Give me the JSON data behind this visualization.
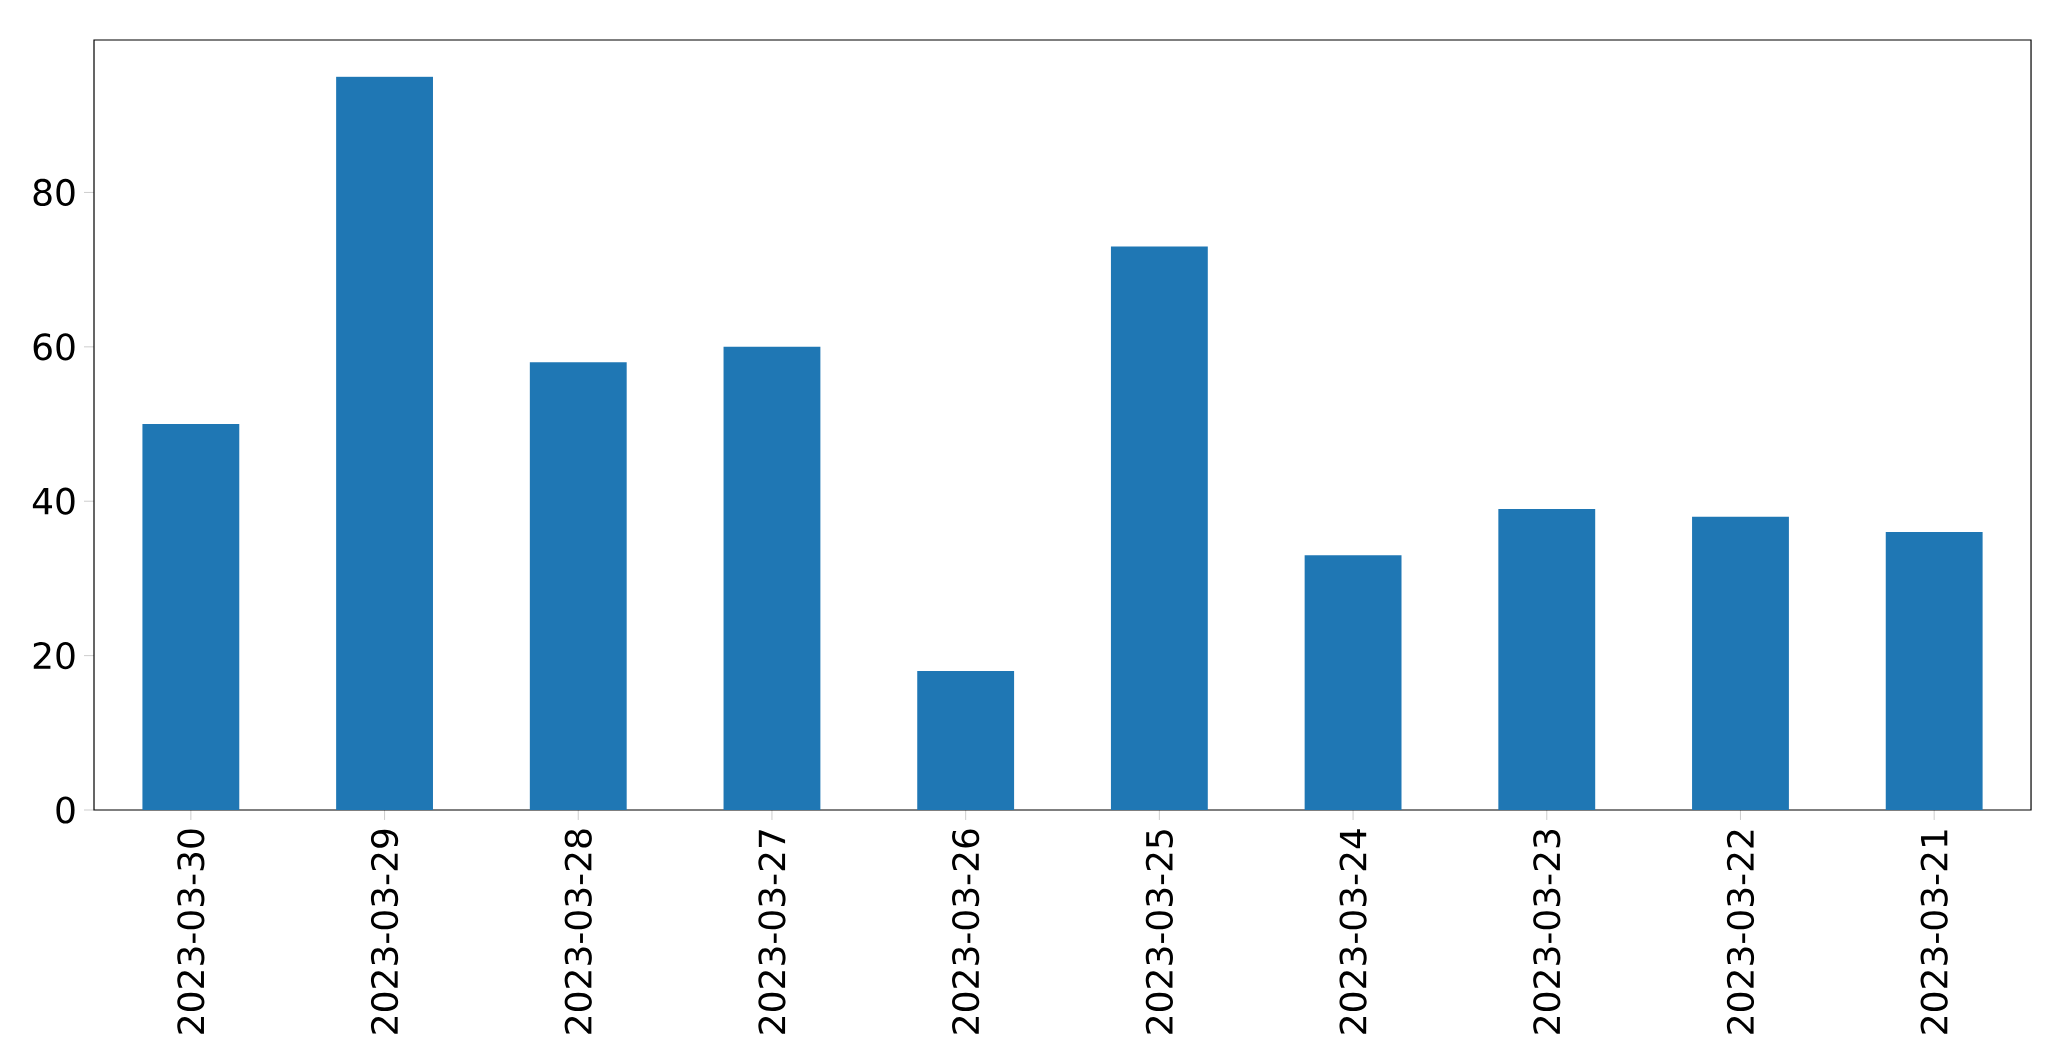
{
  "chart_data": {
    "type": "bar",
    "categories": [
      "2023-03-30",
      "2023-03-29",
      "2023-03-28",
      "2023-03-27",
      "2023-03-26",
      "2023-03-25",
      "2023-03-24",
      "2023-03-23",
      "2023-03-22",
      "2023-03-21"
    ],
    "values": [
      50,
      95,
      58,
      60,
      18,
      73,
      33,
      39,
      38,
      36
    ],
    "color": "#1f77b4",
    "ylim": [
      0,
      99.75
    ],
    "yticks": [
      0,
      20,
      40,
      60,
      80
    ]
  }
}
